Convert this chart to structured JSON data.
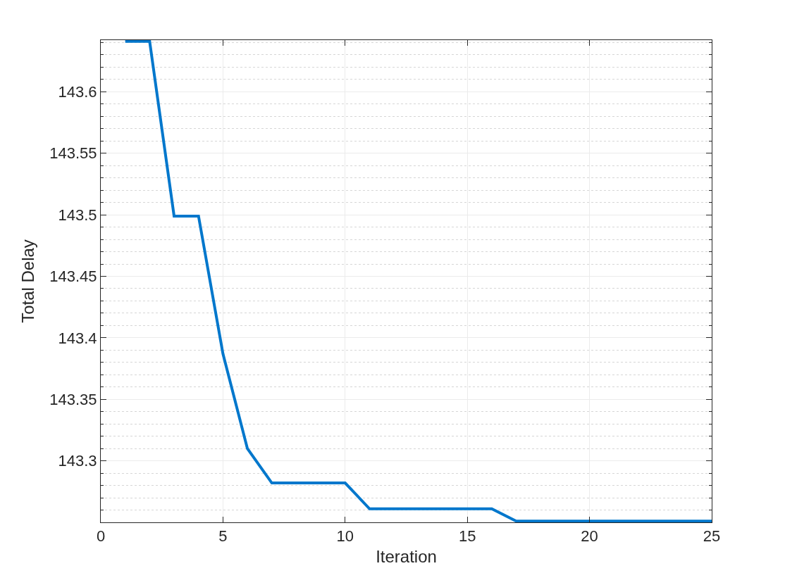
{
  "chart_data": {
    "type": "line",
    "xlabel": "Iteration",
    "ylabel": "Total Delay",
    "x": [
      1,
      2,
      3,
      4,
      5,
      6,
      7,
      8,
      9,
      10,
      11,
      12,
      13,
      14,
      15,
      16,
      17,
      18,
      19,
      20,
      21,
      22,
      23,
      24,
      25
    ],
    "series": [
      {
        "color": "#0077cc",
        "values": [
          143.641,
          143.641,
          143.499,
          143.499,
          143.387,
          143.31,
          143.282,
          143.282,
          143.282,
          143.282,
          143.261,
          143.261,
          143.261,
          143.261,
          143.261,
          143.261,
          143.251,
          143.251,
          143.251,
          143.251,
          143.251,
          143.251,
          143.251,
          143.251,
          143.251
        ]
      }
    ],
    "xlim": [
      0,
      25
    ],
    "xticks": [
      0,
      5,
      10,
      15,
      20,
      25
    ],
    "ylim": [
      143.25,
      143.642
    ],
    "yticks": [
      143.3,
      143.35,
      143.4,
      143.45,
      143.5,
      143.55,
      143.6
    ],
    "grid": true,
    "marker": "none",
    "line_style": "solid"
  }
}
